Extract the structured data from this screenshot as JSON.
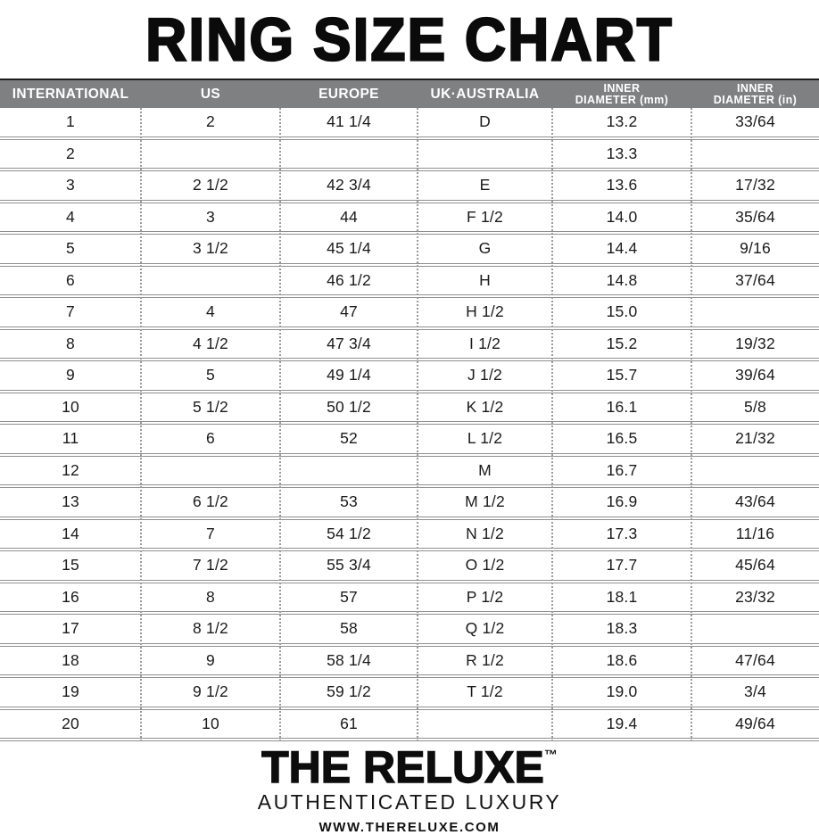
{
  "title": "RING SIZE CHART",
  "table": {
    "header_display": [
      {
        "line1": "INTERNATIONAL",
        "line2": ""
      },
      {
        "line1": "US",
        "line2": ""
      },
      {
        "line1": "EUROPE",
        "line2": ""
      },
      {
        "line1": "UK·AUSTRALIA",
        "line2": ""
      },
      {
        "line1": "INNER",
        "line2": "DIAMETER (mm)"
      },
      {
        "line1": "INNER",
        "line2": "DIAMETER (in)"
      }
    ]
  },
  "chart_data": {
    "type": "table",
    "title": "RING SIZE CHART",
    "columns": [
      "INTERNATIONAL",
      "US",
      "EUROPE",
      "UK·AUSTRALIA",
      "INNER DIAMETER (mm)",
      "INNER DIAMETER (in)"
    ],
    "rows": [
      [
        "1",
        "2",
        "41 1/4",
        "D",
        "13.2",
        "33/64"
      ],
      [
        "2",
        "",
        "",
        "",
        "13.3",
        ""
      ],
      [
        "3",
        "2 1/2",
        "42 3/4",
        "E",
        "13.6",
        "17/32"
      ],
      [
        "4",
        "3",
        "44",
        "F 1/2",
        "14.0",
        "35/64"
      ],
      [
        "5",
        "3 1/2",
        "45 1/4",
        "G",
        "14.4",
        "9/16"
      ],
      [
        "6",
        "",
        "46 1/2",
        "H",
        "14.8",
        "37/64"
      ],
      [
        "7",
        "4",
        "47",
        "H 1/2",
        "15.0",
        ""
      ],
      [
        "8",
        "4 1/2",
        "47 3/4",
        "I 1/2",
        "15.2",
        "19/32"
      ],
      [
        "9",
        "5",
        "49 1/4",
        "J 1/2",
        "15.7",
        "39/64"
      ],
      [
        "10",
        "5 1/2",
        "50 1/2",
        "K 1/2",
        "16.1",
        "5/8"
      ],
      [
        "11",
        "6",
        "52",
        "L 1/2",
        "16.5",
        "21/32"
      ],
      [
        "12",
        "",
        "",
        "M",
        "16.7",
        ""
      ],
      [
        "13",
        "6 1/2",
        "53",
        "M 1/2",
        "16.9",
        "43/64"
      ],
      [
        "14",
        "7",
        "54 1/2",
        "N 1/2",
        "17.3",
        "11/16"
      ],
      [
        "15",
        "7 1/2",
        "55 3/4",
        "O 1/2",
        "17.7",
        "45/64"
      ],
      [
        "16",
        "8",
        "57",
        "P 1/2",
        "18.1",
        "23/32"
      ],
      [
        "17",
        "8 1/2",
        "58",
        "Q 1/2",
        "18.3",
        ""
      ],
      [
        "18",
        "9",
        "58 1/4",
        "R 1/2",
        "18.6",
        "47/64"
      ],
      [
        "19",
        "9 1/2",
        "59 1/2",
        "T 1/2",
        "19.0",
        "3/4"
      ],
      [
        "20",
        "10",
        "61",
        "",
        "19.4",
        "49/64"
      ]
    ]
  },
  "footer": {
    "brand": "THE RELUXE",
    "trademark": "™",
    "tagline": "AUTHENTICATED LUXURY",
    "website": "WWW.THERELUXE.COM"
  },
  "colors": {
    "header_bar": "#7e8082",
    "header_text": "#ffffff",
    "row_separator": "#8f8f8f",
    "column_dotted": "#9a9a9a",
    "text": "#1a1a1a",
    "title_text": "#0b0b0b",
    "background": "#ffffff"
  }
}
